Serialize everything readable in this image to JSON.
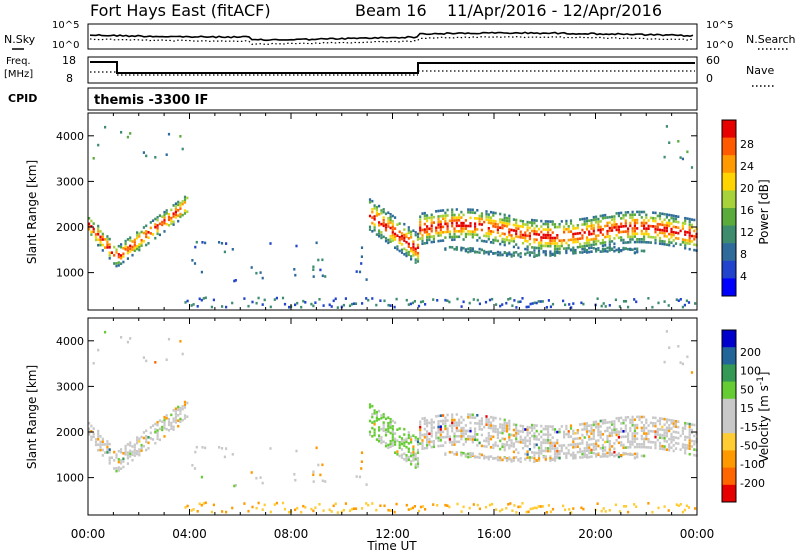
{
  "title": {
    "radar": "Fort Hays East (fitACF)",
    "beam": "Beam 16",
    "dates": "11/Apr/2016 - 12/Apr/2016"
  },
  "summary_panels": {
    "nsky_label": "N.Sky",
    "nsky_ticks": [
      "10^5",
      "10^0"
    ],
    "nsearch_label": "N.Search",
    "nsearch_ticks": [
      "10^5",
      "10^0"
    ],
    "freq_label": "Freq.",
    "freq_unit": "[MHz]",
    "freq_ticks": [
      "18",
      "8"
    ],
    "nave_label": "Nave",
    "nave_ticks": [
      "60",
      "0"
    ],
    "cpid_label": "CPID",
    "cpid_text": "themis -3300 IF"
  },
  "colors": {
    "power_scale": [
      "#0000ff",
      "#2244cc",
      "#2f6b9a",
      "#3d8c6e",
      "#5aaa3c",
      "#a8d23a",
      "#ffd400",
      "#ff9a00",
      "#ff5a00",
      "#e60000"
    ],
    "velocity_scale": [
      "#e60000",
      "#ff6600",
      "#ff9900",
      "#ffcc33",
      "#c8c8c8",
      "#c8c8c8",
      "#66cc33",
      "#339955",
      "#226699",
      "#0000cc"
    ],
    "frame": "#000000"
  },
  "chart_data": [
    {
      "type": "heatmap",
      "panel": "power",
      "ylabel": "Slant Range [km]",
      "yticks": [
        "1000",
        "2000",
        "3000",
        "4000"
      ],
      "ylim": [
        180,
        4500
      ],
      "colorbar_label": "Power [dB]",
      "colorbar_ticks": [
        "4",
        "8",
        "12",
        "16",
        "20",
        "24",
        "28"
      ],
      "clim": [
        0,
        30
      ],
      "echo_bands": [
        {
          "t_start": 0.0,
          "t_end": 3.9,
          "range_center_start": 2050,
          "range_center_end": 2400,
          "dip_time": 1.1,
          "dip_range": 1250,
          "power_peak": 26
        },
        {
          "t_start": 11.0,
          "t_end": 24.0,
          "range_center_start": 2300,
          "range_center_end": 1800,
          "power_peak": 26
        },
        {
          "t_start": 14.0,
          "t_end": 22.0,
          "range_center_start": 1500,
          "range_center_end": 1450,
          "power_peak": 12
        }
      ]
    },
    {
      "type": "heatmap",
      "panel": "velocity",
      "ylabel": "Slant Range [km]",
      "yticks": [
        "1000",
        "2000",
        "3000",
        "4000"
      ],
      "ylim": [
        180,
        4500
      ],
      "colorbar_label": "Velocity [m s^-1]",
      "colorbar_ticks": [
        "200",
        "100",
        "50",
        "15",
        "-15",
        "-50",
        "-100",
        "-200"
      ],
      "clim": [
        -250,
        250
      ]
    }
  ],
  "xaxis": {
    "label": "Time UT",
    "ticks": [
      "00:00",
      "04:00",
      "08:00",
      "12:00",
      "16:00",
      "20:00",
      "00:00"
    ],
    "hours": [
      0,
      4,
      8,
      12,
      16,
      20,
      24
    ]
  }
}
